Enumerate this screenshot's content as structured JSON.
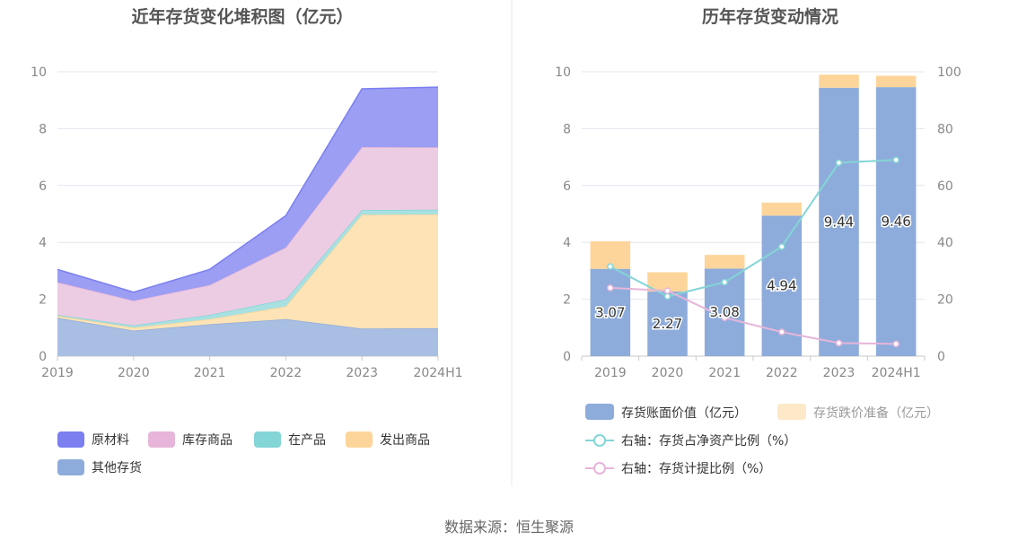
{
  "source_note": "数据来源：恒生聚源",
  "chart_data": [
    {
      "type": "area",
      "stacked": true,
      "title": "近年存货变化堆积图（亿元）",
      "categories": [
        "2019",
        "2020",
        "2021",
        "2022",
        "2023",
        "2024H1"
      ],
      "ylim": [
        0,
        10
      ],
      "yticks": [
        0,
        2,
        4,
        6,
        8,
        10
      ],
      "grid": true,
      "legend_position": "bottom",
      "series": [
        {
          "name": "其他存货",
          "color": "#a9bee3",
          "legend_color": "#8eacdb",
          "values": [
            1.35,
            0.9,
            1.12,
            1.3,
            0.97,
            0.98
          ]
        },
        {
          "name": "发出商品",
          "color": "#fde3b5",
          "legend_color": "#fdd59a",
          "values": [
            0.07,
            0.1,
            0.18,
            0.45,
            4.0,
            4.0
          ]
        },
        {
          "name": "在产品",
          "color": "#a9e0e1",
          "legend_color": "#84d5d6",
          "values": [
            0.03,
            0.08,
            0.15,
            0.25,
            0.17,
            0.17
          ]
        },
        {
          "name": "库存商品",
          "color": "#eccce3",
          "legend_color": "#e6b5d9",
          "values": [
            1.15,
            0.87,
            1.05,
            1.82,
            2.21,
            2.19
          ]
        },
        {
          "name": "原材料",
          "color": "#9b9ef3",
          "legend_color": "#7b7ff0",
          "values": [
            0.45,
            0.3,
            0.55,
            1.12,
            2.05,
            2.12
          ]
        }
      ],
      "legend_order": [
        "原材料",
        "库存商品",
        "在产品",
        "发出商品",
        "其他存货"
      ]
    },
    {
      "type": "bar",
      "stacked": true,
      "title": "历年存货变动情况",
      "categories": [
        "2019",
        "2020",
        "2021",
        "2022",
        "2023",
        "2024H1"
      ],
      "ylim": [
        0,
        10
      ],
      "yticks": [
        0,
        2,
        4,
        6,
        8,
        10
      ],
      "y2lim": [
        0,
        100
      ],
      "y2ticks": [
        0,
        20,
        40,
        60,
        80,
        100
      ],
      "grid": true,
      "legend_position": "bottom",
      "bars": [
        {
          "name": "存货账面价值（亿元）",
          "color": "#8eacdb",
          "values": [
            3.07,
            2.27,
            3.08,
            4.94,
            9.44,
            9.46
          ],
          "labels": [
            "3.07",
            "2.27",
            "3.08",
            "4.94",
            "9.44",
            "9.46"
          ]
        },
        {
          "name": "存货跌价准备（亿元）",
          "color": "#fdd59a",
          "legend_color": "#fde8c8",
          "values": [
            0.97,
            0.68,
            0.48,
            0.46,
            0.46,
            0.4
          ]
        }
      ],
      "lines": [
        {
          "name": "右轴：存货占净资产比例（%）",
          "axis": "right",
          "color": "#84d5d6",
          "values": [
            31.5,
            21.0,
            26.0,
            38.5,
            68.0,
            69.0
          ]
        },
        {
          "name": "右轴：存货计提比例（%）",
          "axis": "right",
          "color": "#e6b5d9",
          "values": [
            24.0,
            23.0,
            13.5,
            8.5,
            4.6,
            4.3
          ]
        }
      ]
    }
  ]
}
